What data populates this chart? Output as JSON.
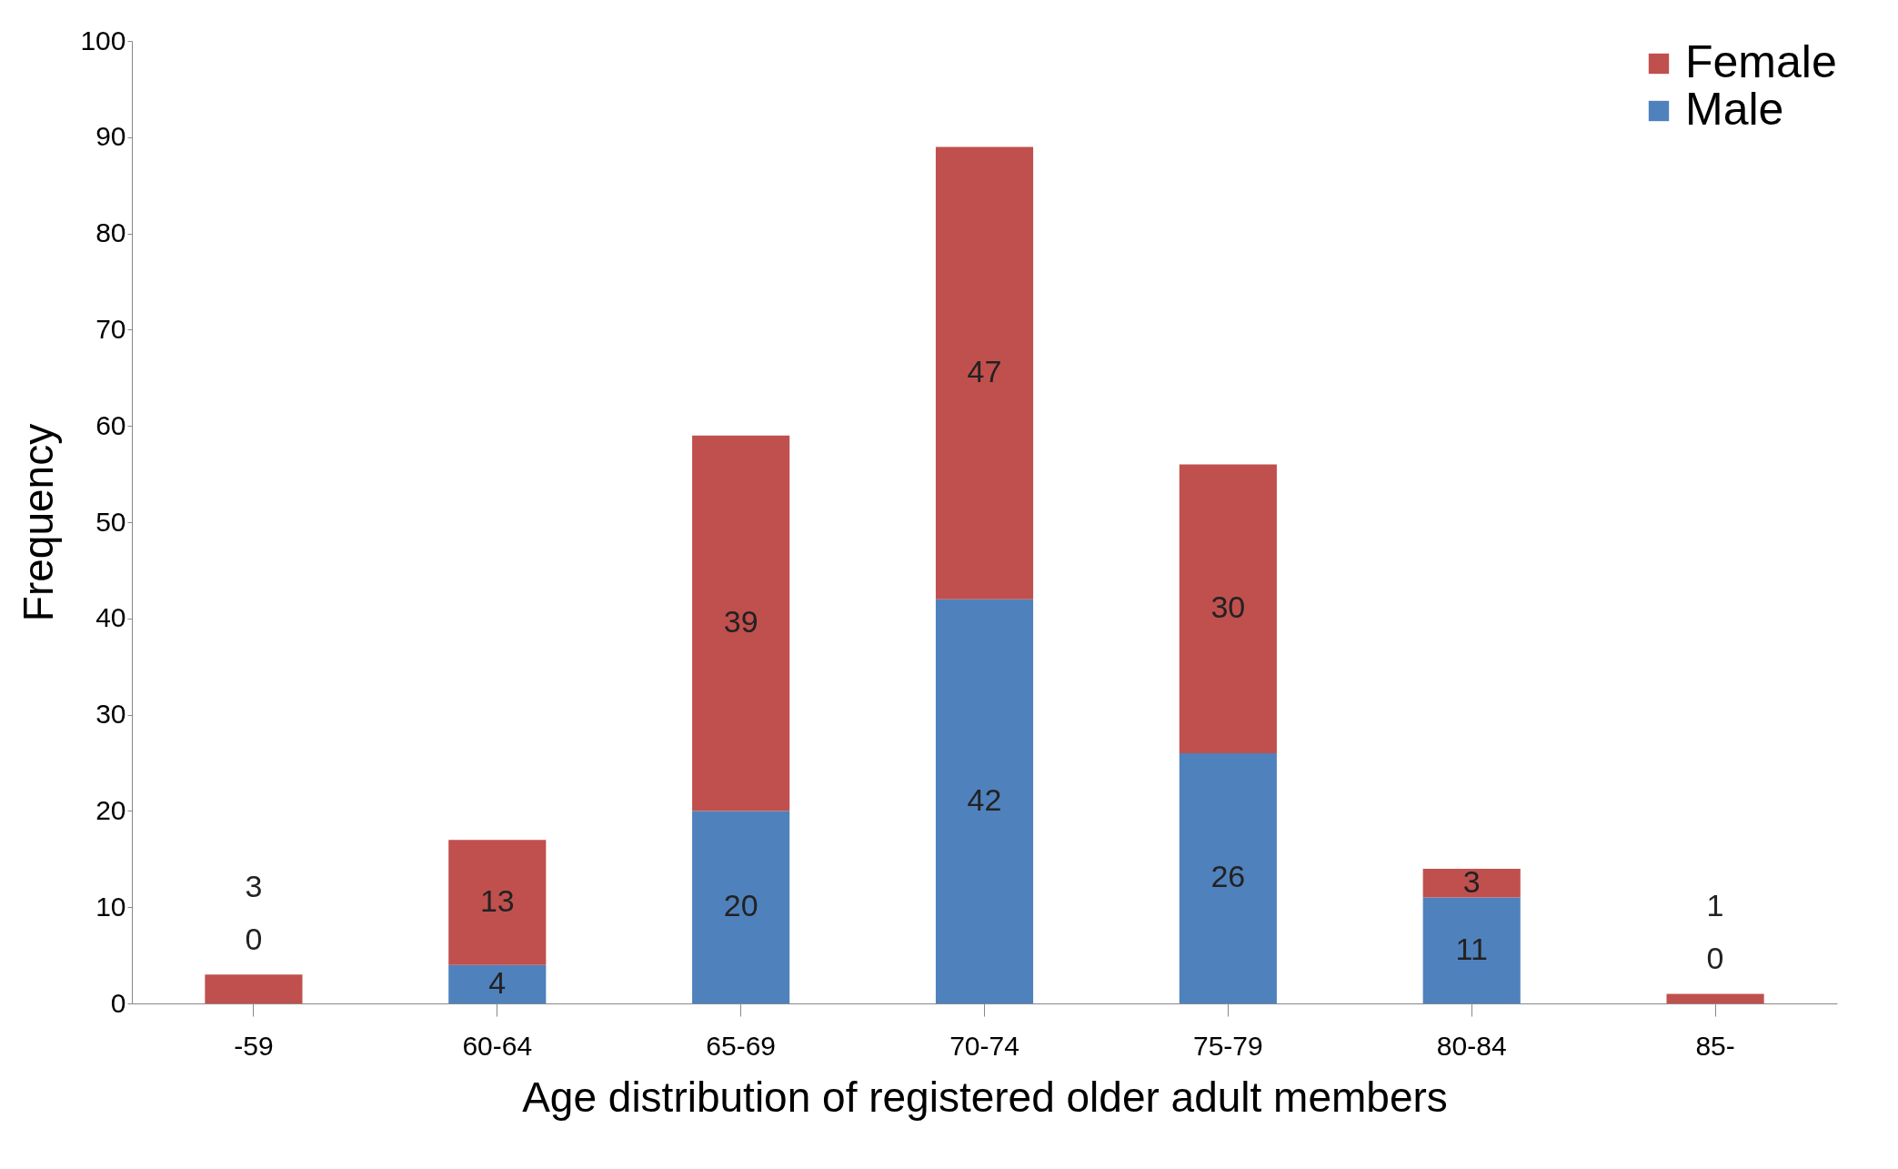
{
  "chart_data": {
    "type": "bar",
    "stacked": true,
    "xlabel": "Age distribution of registered older adult members",
    "ylabel": "Frequency",
    "categories": [
      "-59",
      "60-64",
      "65-69",
      "70-74",
      "75-79",
      "80-84",
      "85-"
    ],
    "series": [
      {
        "name": "Male",
        "color": "#4f81bd",
        "values": [
          0,
          4,
          20,
          42,
          26,
          11,
          0
        ]
      },
      {
        "name": "Female",
        "color": "#c0504d",
        "values": [
          3,
          13,
          39,
          47,
          30,
          3,
          1
        ]
      }
    ],
    "ylim": [
      0,
      100
    ],
    "yticks": [
      0,
      10,
      20,
      30,
      40,
      50,
      60,
      70,
      80,
      90,
      100
    ],
    "grid": false,
    "legend": "top right",
    "data_labels": true
  }
}
